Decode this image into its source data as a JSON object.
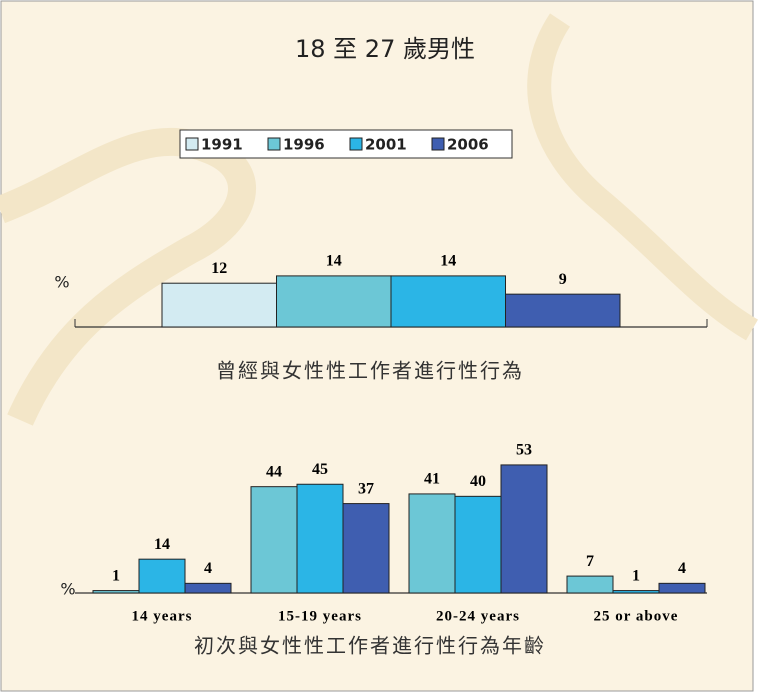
{
  "chart_data": [
    {
      "type": "bar",
      "title": "18 至 27 歲男性",
      "ylabel": "%",
      "xlabel": "曾經與女性性工作者進行性行為",
      "ylim": [
        0,
        20
      ],
      "series": [
        {
          "name": "1991",
          "color": "#d3ebf2",
          "values": [
            12
          ]
        },
        {
          "name": "1996",
          "color": "#6cc7d6",
          "values": [
            14
          ]
        },
        {
          "name": "2001",
          "color": "#2bb5e6",
          "values": [
            14
          ]
        },
        {
          "name": "2006",
          "color": "#3f5eb0",
          "values": [
            9
          ]
        }
      ]
    },
    {
      "type": "bar",
      "ylabel": "%",
      "xlabel": "初次與女性性工作者進行性行為年齡",
      "ylim": [
        0,
        60
      ],
      "categories": [
        "14 years",
        "15-19 years",
        "20-24 years",
        "25 or above"
      ],
      "series": [
        {
          "color": "#6cc7d6",
          "values": [
            1,
            44,
            41,
            7
          ]
        },
        {
          "color": "#2bb5e6",
          "values": [
            14,
            45,
            40,
            1
          ]
        },
        {
          "color": "#3f5eb0",
          "values": [
            4,
            37,
            53,
            4
          ]
        }
      ]
    }
  ]
}
